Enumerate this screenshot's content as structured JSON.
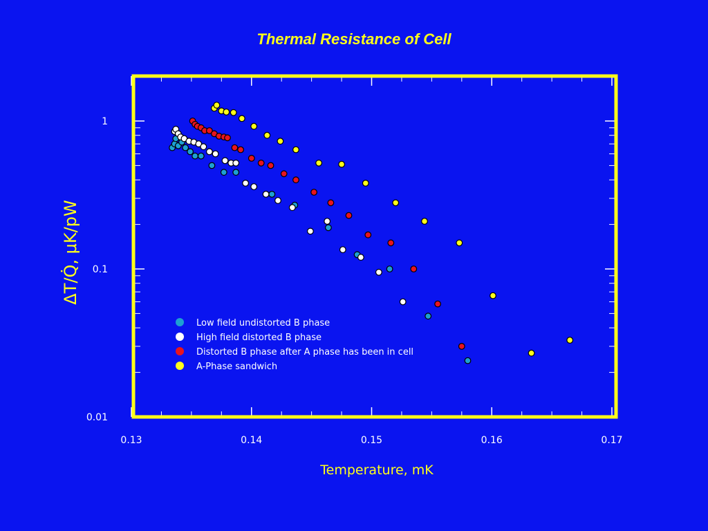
{
  "slide": {
    "title": "Thermal Resistance of Cell"
  },
  "chart_data": {
    "type": "scatter",
    "title": "Thermal Resistance of Cell",
    "xlabel": "Temperature, mK",
    "ylabel": "ΔT/Q̇, μK/pW",
    "xlim": [
      0.13,
      0.17
    ],
    "ylim": [
      0.01,
      2
    ],
    "yscale": "log",
    "x_ticks": [
      "0.13",
      "0.14",
      "0.15",
      "0.16",
      "0.17"
    ],
    "y_ticks": [
      "1",
      "0.1",
      "0.01"
    ],
    "legend_position": "lower-left",
    "colors": {
      "background": "#0a14f0",
      "frame": "#ffff1a",
      "axes_text": "#ffffff",
      "title": "#ffff1a"
    },
    "series": [
      {
        "name": "Low field undistorted B phase",
        "color": "#1ea0d2",
        "points": [
          [
            0.1334,
            0.66
          ],
          [
            0.1336,
            0.7
          ],
          [
            0.1337,
            0.76
          ],
          [
            0.1339,
            0.68
          ],
          [
            0.1342,
            0.72
          ],
          [
            0.1345,
            0.66
          ],
          [
            0.1349,
            0.62
          ],
          [
            0.1353,
            0.58
          ],
          [
            0.1358,
            0.58
          ],
          [
            0.1367,
            0.5
          ],
          [
            0.1377,
            0.45
          ],
          [
            0.1387,
            0.45
          ],
          [
            0.1417,
            0.32
          ],
          [
            0.1436,
            0.27
          ],
          [
            0.1464,
            0.19
          ],
          [
            0.1488,
            0.125
          ],
          [
            0.1515,
            0.1
          ],
          [
            0.1547,
            0.048
          ],
          [
            0.158,
            0.024
          ]
        ]
      },
      {
        "name": "High field distorted B phase",
        "color": "#ffffff",
        "points": [
          [
            0.1336,
            0.85
          ],
          [
            0.1337,
            0.88
          ],
          [
            0.1339,
            0.82
          ],
          [
            0.1341,
            0.78
          ],
          [
            0.1344,
            0.76
          ],
          [
            0.1348,
            0.73
          ],
          [
            0.1352,
            0.72
          ],
          [
            0.1356,
            0.7
          ],
          [
            0.136,
            0.67
          ],
          [
            0.1365,
            0.62
          ],
          [
            0.137,
            0.6
          ],
          [
            0.1378,
            0.54
          ],
          [
            0.1383,
            0.52
          ],
          [
            0.1387,
            0.52
          ],
          [
            0.1395,
            0.38
          ],
          [
            0.1402,
            0.36
          ],
          [
            0.1412,
            0.32
          ],
          [
            0.1422,
            0.29
          ],
          [
            0.1434,
            0.26
          ],
          [
            0.1449,
            0.18
          ],
          [
            0.1463,
            0.21
          ],
          [
            0.1476,
            0.135
          ],
          [
            0.1491,
            0.12
          ],
          [
            0.1506,
            0.095
          ],
          [
            0.1526,
            0.06
          ]
        ]
      },
      {
        "name": "Distorted B phase after A phase has been in cell",
        "color": "#e8141e",
        "points": [
          [
            0.1351,
            1.0
          ],
          [
            0.1353,
            0.95
          ],
          [
            0.1355,
            0.92
          ],
          [
            0.1358,
            0.9
          ],
          [
            0.1361,
            0.86
          ],
          [
            0.1365,
            0.86
          ],
          [
            0.1369,
            0.82
          ],
          [
            0.1373,
            0.79
          ],
          [
            0.1377,
            0.78
          ],
          [
            0.138,
            0.77
          ],
          [
            0.1386,
            0.66
          ],
          [
            0.1391,
            0.64
          ],
          [
            0.14,
            0.56
          ],
          [
            0.1408,
            0.52
          ],
          [
            0.1416,
            0.5
          ],
          [
            0.1427,
            0.44
          ],
          [
            0.1437,
            0.4
          ],
          [
            0.1452,
            0.33
          ],
          [
            0.1466,
            0.28
          ],
          [
            0.1481,
            0.23
          ],
          [
            0.1497,
            0.17
          ],
          [
            0.1516,
            0.15
          ],
          [
            0.1535,
            0.1
          ],
          [
            0.1555,
            0.058
          ],
          [
            0.1575,
            0.03
          ]
        ]
      },
      {
        "name": "A-Phase sandwich",
        "color": "#ffff1a",
        "points": [
          [
            0.1369,
            1.22
          ],
          [
            0.1371,
            1.28
          ],
          [
            0.1375,
            1.17
          ],
          [
            0.1379,
            1.15
          ],
          [
            0.1385,
            1.14
          ],
          [
            0.1392,
            1.04
          ],
          [
            0.1402,
            0.92
          ],
          [
            0.1413,
            0.8
          ],
          [
            0.1424,
            0.73
          ],
          [
            0.1437,
            0.64
          ],
          [
            0.1456,
            0.52
          ],
          [
            0.1475,
            0.51
          ],
          [
            0.1495,
            0.38
          ],
          [
            0.152,
            0.28
          ],
          [
            0.1544,
            0.21
          ],
          [
            0.1573,
            0.15
          ],
          [
            0.1601,
            0.066
          ],
          [
            0.1633,
            0.027
          ],
          [
            0.1665,
            0.033
          ]
        ]
      }
    ]
  }
}
